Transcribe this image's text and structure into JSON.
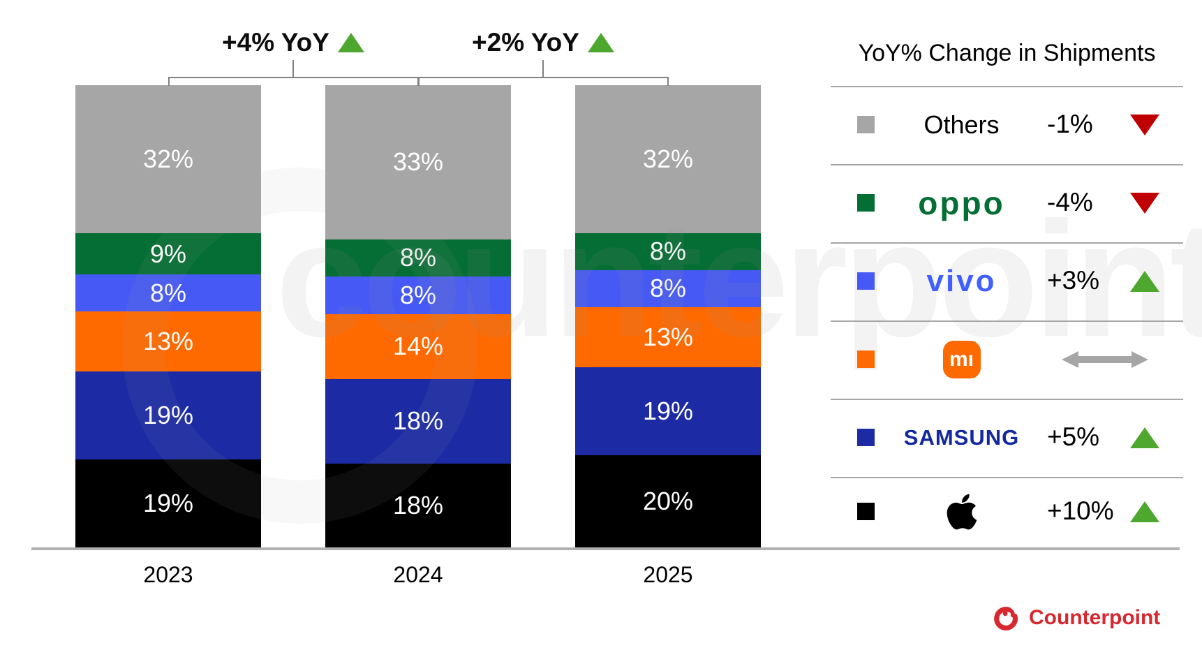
{
  "watermark": {
    "text": "counterpoint"
  },
  "chart_data": {
    "type": "bar",
    "stacked": true,
    "categories": [
      "2023",
      "2024",
      "2025"
    ],
    "value_suffix": "%",
    "ylim": [
      0,
      100
    ],
    "grid": false,
    "legend_position": "right",
    "series": [
      {
        "name": "Apple",
        "color": "#000000",
        "values": [
          19,
          18,
          20
        ]
      },
      {
        "name": "Samsung",
        "color": "#1C2BA4",
        "values": [
          19,
          18,
          19
        ]
      },
      {
        "name": "Xiaomi",
        "color": "#FF6A00",
        "values": [
          13,
          14,
          13
        ]
      },
      {
        "name": "vivo",
        "color": "#4659F4",
        "values": [
          8,
          8,
          8
        ]
      },
      {
        "name": "OPPO",
        "color": "#056E34",
        "values": [
          9,
          8,
          8
        ]
      },
      {
        "name": "Others",
        "color": "#A6A6A6",
        "values": [
          32,
          33,
          32
        ]
      }
    ],
    "annotations": [
      {
        "label": "+4% YoY",
        "from_category": "2023",
        "to_category": "2024",
        "direction": "up"
      },
      {
        "label": "+2% YoY",
        "from_category": "2024",
        "to_category": "2025",
        "direction": "up"
      }
    ]
  },
  "legend": {
    "title": "YoY% Change in Shipments",
    "colors": {
      "up": "#4EA72E",
      "down": "#C00000",
      "flat": "#A6A6A6"
    },
    "rows": [
      {
        "brand": "Others",
        "display": "Others",
        "style": "plain",
        "color": "#A6A6A6",
        "change": "-1%",
        "direction": "down"
      },
      {
        "brand": "OPPO",
        "display": "oppo",
        "style": "oppo",
        "color": "#056E34",
        "change": "-4%",
        "direction": "down"
      },
      {
        "brand": "vivo",
        "display": "vivo",
        "style": "vivo",
        "color": "#4659F4",
        "change": "+3%",
        "direction": "up"
      },
      {
        "brand": "Xiaomi",
        "display": "mı",
        "style": "mi",
        "color": "#FF6A00",
        "change": "",
        "direction": "flat"
      },
      {
        "brand": "Samsung",
        "display": "SAMSUNG",
        "style": "samsung",
        "color": "#1C2BA4",
        "change": "+5%",
        "direction": "up"
      },
      {
        "brand": "Apple",
        "display": "",
        "style": "apple",
        "color": "#000000",
        "change": "+10%",
        "direction": "up"
      }
    ]
  },
  "footer": {
    "brand": "Counterpoint",
    "color": "#D7282F"
  }
}
